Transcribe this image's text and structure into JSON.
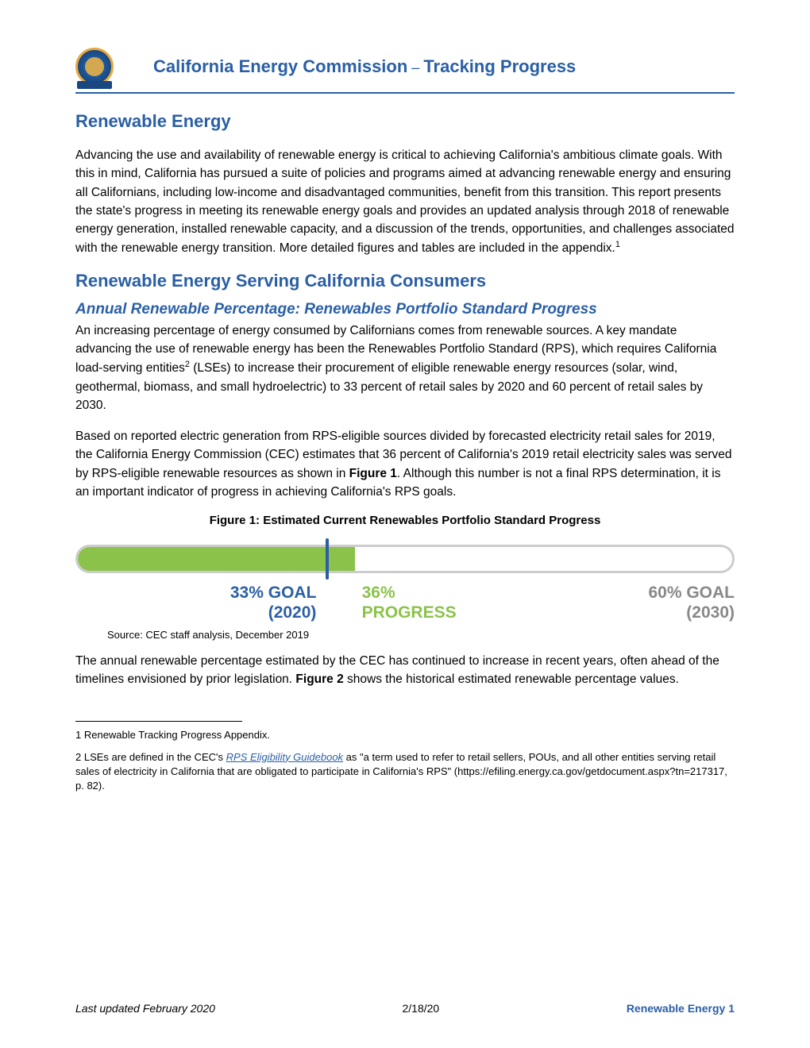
{
  "header": {
    "title_left": "California Energy Commission",
    "title_sep": " – ",
    "title_right": "Tracking Progress"
  },
  "main_title": "Renewable Energy",
  "para1": "Advancing the use and availability of renewable energy is critical to achieving California's ambitious climate goals. With this in mind, California has pursued a suite of policies and programs aimed at advancing renewable energy and ensuring all Californians, including low-income and disadvantaged communities, benefit from this transition. This report presents the state's progress in meeting its renewable energy goals and provides an updated analysis through 2018 of renewable energy generation, installed renewable capacity, and a discussion of the trends, opportunities, and challenges associated with the renewable energy transition. More detailed figures and tables are included in the appendix.",
  "section2_title": "Renewable Energy Serving California Consumers",
  "subsection_title": "Annual Renewable Percentage: Renewables Portfolio Standard Progress",
  "para2": "An increasing percentage of energy consumed by Californians comes from renewable sources. A key mandate advancing the use of renewable energy has been the Renewables Portfolio Standard (RPS), which requires California load-serving entities",
  "para2b": " (LSEs) to increase their procurement of eligible renewable energy resources (solar, wind, geothermal, biomass, and small hydroelectric) to 33 percent of retail sales by 2020 and 60 percent of retail sales by 2030.",
  "para3a": "Based on reported electric generation from RPS-eligible sources divided by forecasted electricity retail sales for 2019, the California Energy Commission (CEC) estimates that 36 percent of California's 2019 retail electricity sales was served by RPS-eligible renewable resources as shown in ",
  "para3_bold": "Figure 1",
  "para3b": ". Although this number is not a final RPS determination, it is an important indicator of progress in achieving California's RPS goals.",
  "figure1": {
    "title": "Figure 1: Estimated Current Renewables Portfolio Standard Progress",
    "progress_percent": 42,
    "tick33_percent": 38,
    "tick33_color": "#2a5fa5",
    "bar_color": "#8bc34a",
    "label33_line1": "33% GOAL",
    "label33_line2": "(2020)",
    "label36_line1": "36%",
    "label36_line2": "PROGRESS",
    "label60_line1": "60% GOAL",
    "label60_line2": "(2030)",
    "source": "Source: CEC staff analysis, December 2019"
  },
  "para4a": "The annual renewable percentage estimated by the CEC has continued to increase in recent years, often ahead of the timelines envisioned by prior legislation. ",
  "para4_bold": "Figure 2",
  "para4b": " shows the historical estimated renewable percentage values.",
  "footnote1": "1 Renewable Tracking Progress Appendix.",
  "footnote2a": "2 LSEs are defined in the CEC's ",
  "footnote2_link": "RPS Eligibility Guidebook",
  "footnote2b": " as \"a term used to refer to retail sellers, POUs, and all other entities serving retail sales of electricity in California that are obligated to participate in California's RPS\" (https://efiling.energy.ca.gov/getdocument.aspx?tn=217317, p. 82).",
  "footer": {
    "left": "Last updated February 2020",
    "center": "2/18/20",
    "right": "Renewable Energy 1"
  }
}
